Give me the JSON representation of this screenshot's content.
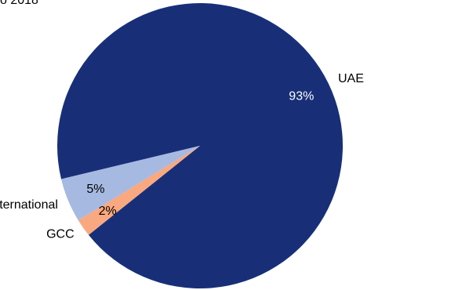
{
  "chart_data": {
    "type": "pie",
    "title": "o 2018",
    "series": [
      {
        "values": [
          93,
          2,
          5
        ]
      }
    ],
    "categories": [
      "UAE",
      "GCC",
      "International"
    ],
    "data_labels": [
      "93%",
      "2%",
      "5%"
    ],
    "colors": [
      "#182f78",
      "#f9a880",
      "#a6b9e1"
    ],
    "label_colors": [
      "#ffffff",
      "#000000",
      "#000000"
    ],
    "legend": "none"
  }
}
